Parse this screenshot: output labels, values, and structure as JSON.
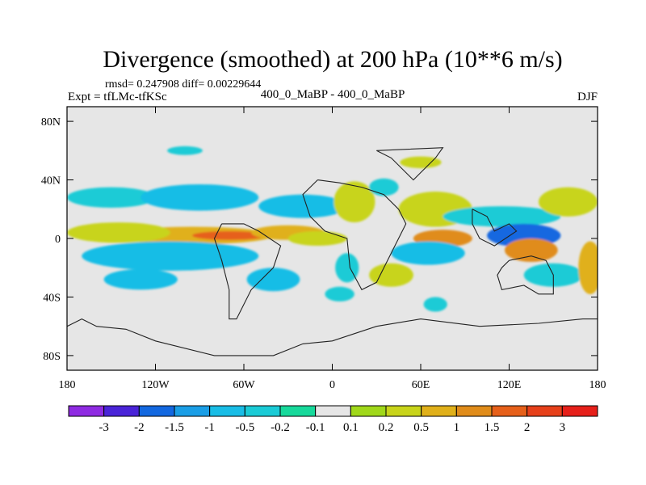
{
  "title": "Divergence (smoothed) at 200 hPa (10**6 m/s)",
  "stats": "rmsd= 0.247908 diff= 0.00229644",
  "experiment": "Expt = tfLMc-tfKSc",
  "comparison": "400_0_MaBP - 400_0_MaBP",
  "season": "DJF",
  "lat_ticks": [
    {
      "label": "80N",
      "lat": 80
    },
    {
      "label": "40N",
      "lat": 40
    },
    {
      "label": "0",
      "lat": 0
    },
    {
      "label": "40S",
      "lat": -40
    },
    {
      "label": "80S",
      "lat": -80
    }
  ],
  "lon_ticks": [
    {
      "label": "180",
      "lon": -180
    },
    {
      "label": "120W",
      "lon": -120
    },
    {
      "label": "60W",
      "lon": -60
    },
    {
      "label": "0",
      "lon": 0
    },
    {
      "label": "60E",
      "lon": 60
    },
    {
      "label": "120E",
      "lon": 120
    },
    {
      "label": "180",
      "lon": 180
    }
  ],
  "map_range": {
    "lon": [
      -180,
      180
    ],
    "lat": [
      -90,
      90
    ]
  },
  "colorbar": {
    "colors": [
      "#8f2be2",
      "#4a24d8",
      "#1368e0",
      "#1a9ee6",
      "#19bde6",
      "#1acbd6",
      "#17d99b",
      "#e6e6e6",
      "#a0d81a",
      "#c8d41a",
      "#e0b01a",
      "#e08c1a",
      "#e6601a",
      "#e6401a",
      "#e6201a"
    ],
    "labels": [
      "-3",
      "-2",
      "-1.5",
      "-1",
      "-0.5",
      "-0.2",
      "-0.1",
      "0.1",
      "0.2",
      "0.5",
      "1",
      "1.5",
      "2",
      "3"
    ]
  },
  "field_blobs": [
    {
      "lon": -95,
      "lat": 2,
      "rx": 55,
      "ry": 6,
      "level": 10
    },
    {
      "lon": -70,
      "lat": 2,
      "rx": 25,
      "ry": 3,
      "level": 12
    },
    {
      "lon": -30,
      "lat": 4,
      "rx": 25,
      "ry": 5,
      "level": 10
    },
    {
      "lon": -145,
      "lat": 4,
      "rx": 35,
      "ry": 7,
      "level": 9
    },
    {
      "lon": -10,
      "lat": 0,
      "rx": 20,
      "ry": 5,
      "level": 9
    },
    {
      "lon": -110,
      "lat": -12,
      "rx": 60,
      "ry": 10,
      "level": 4
    },
    {
      "lon": -150,
      "lat": 28,
      "rx": 30,
      "ry": 7,
      "level": 5
    },
    {
      "lon": -90,
      "lat": 28,
      "rx": 40,
      "ry": 9,
      "level": 4
    },
    {
      "lon": -130,
      "lat": -28,
      "rx": 25,
      "ry": 7,
      "level": 4
    },
    {
      "lon": -20,
      "lat": 22,
      "rx": 30,
      "ry": 8,
      "level": 4
    },
    {
      "lon": -40,
      "lat": -28,
      "rx": 18,
      "ry": 8,
      "level": 4
    },
    {
      "lon": 5,
      "lat": -38,
      "rx": 10,
      "ry": 5,
      "level": 5
    },
    {
      "lon": 15,
      "lat": 25,
      "rx": 14,
      "ry": 14,
      "level": 9
    },
    {
      "lon": 40,
      "lat": -25,
      "rx": 15,
      "ry": 8,
      "level": 9
    },
    {
      "lon": 10,
      "lat": -20,
      "rx": 8,
      "ry": 10,
      "level": 5
    },
    {
      "lon": 35,
      "lat": 35,
      "rx": 10,
      "ry": 6,
      "level": 5
    },
    {
      "lon": 70,
      "lat": 20,
      "rx": 25,
      "ry": 12,
      "level": 9
    },
    {
      "lon": 75,
      "lat": 0,
      "rx": 20,
      "ry": 6,
      "level": 11
    },
    {
      "lon": 65,
      "lat": -10,
      "rx": 25,
      "ry": 8,
      "level": 4
    },
    {
      "lon": 115,
      "lat": 15,
      "rx": 40,
      "ry": 7,
      "level": 5
    },
    {
      "lon": 130,
      "lat": 2,
      "rx": 25,
      "ry": 8,
      "level": 2
    },
    {
      "lon": 135,
      "lat": -8,
      "rx": 18,
      "ry": 8,
      "level": 11
    },
    {
      "lon": 160,
      "lat": 25,
      "rx": 20,
      "ry": 10,
      "level": 9
    },
    {
      "lon": 150,
      "lat": -25,
      "rx": 20,
      "ry": 8,
      "level": 5
    },
    {
      "lon": 70,
      "lat": -45,
      "rx": 8,
      "ry": 5,
      "level": 5
    },
    {
      "lon": -100,
      "lat": 60,
      "rx": 12,
      "ry": 3,
      "level": 5
    },
    {
      "lon": 60,
      "lat": 52,
      "rx": 14,
      "ry": 4,
      "level": 9
    },
    {
      "lon": 175,
      "lat": -20,
      "rx": 8,
      "ry": 18,
      "level": 10
    }
  ],
  "coastline_segments": [
    [
      [
        -180,
        -60
      ],
      [
        -170,
        -55
      ],
      [
        -160,
        -60
      ],
      [
        -140,
        -62
      ],
      [
        -120,
        -70
      ],
      [
        -80,
        -80
      ],
      [
        -40,
        -80
      ],
      [
        -20,
        -72
      ],
      [
        0,
        -70
      ],
      [
        30,
        -60
      ],
      [
        60,
        -55
      ],
      [
        100,
        -60
      ],
      [
        140,
        -58
      ],
      [
        170,
        -55
      ],
      [
        180,
        -55
      ]
    ],
    [
      [
        -10,
        40
      ],
      [
        -20,
        30
      ],
      [
        -15,
        15
      ],
      [
        -5,
        5
      ],
      [
        10,
        0
      ],
      [
        12,
        -20
      ],
      [
        20,
        -35
      ],
      [
        30,
        -30
      ],
      [
        40,
        -10
      ],
      [
        50,
        10
      ],
      [
        45,
        20
      ],
      [
        35,
        30
      ],
      [
        20,
        35
      ],
      [
        5,
        38
      ],
      [
        -10,
        40
      ]
    ],
    [
      [
        -75,
        10
      ],
      [
        -80,
        0
      ],
      [
        -75,
        -15
      ],
      [
        -70,
        -35
      ],
      [
        -70,
        -55
      ],
      [
        -65,
        -55
      ],
      [
        -55,
        -35
      ],
      [
        -40,
        -20
      ],
      [
        -35,
        -5
      ],
      [
        -50,
        5
      ],
      [
        -60,
        10
      ],
      [
        -75,
        10
      ]
    ],
    [
      [
        115,
        -20
      ],
      [
        120,
        -15
      ],
      [
        135,
        -12
      ],
      [
        145,
        -15
      ],
      [
        150,
        -25
      ],
      [
        150,
        -38
      ],
      [
        140,
        -38
      ],
      [
        130,
        -32
      ],
      [
        115,
        -35
      ],
      [
        112,
        -25
      ],
      [
        115,
        -20
      ]
    ],
    [
      [
        95,
        20
      ],
      [
        105,
        15
      ],
      [
        110,
        5
      ],
      [
        120,
        10
      ],
      [
        125,
        5
      ],
      [
        110,
        -5
      ],
      [
        100,
        0
      ],
      [
        95,
        10
      ],
      [
        95,
        20
      ]
    ],
    [
      [
        30,
        60
      ],
      [
        40,
        55
      ],
      [
        50,
        45
      ],
      [
        55,
        40
      ],
      [
        60,
        45
      ],
      [
        70,
        55
      ],
      [
        75,
        62
      ],
      [
        30,
        60
      ]
    ]
  ]
}
